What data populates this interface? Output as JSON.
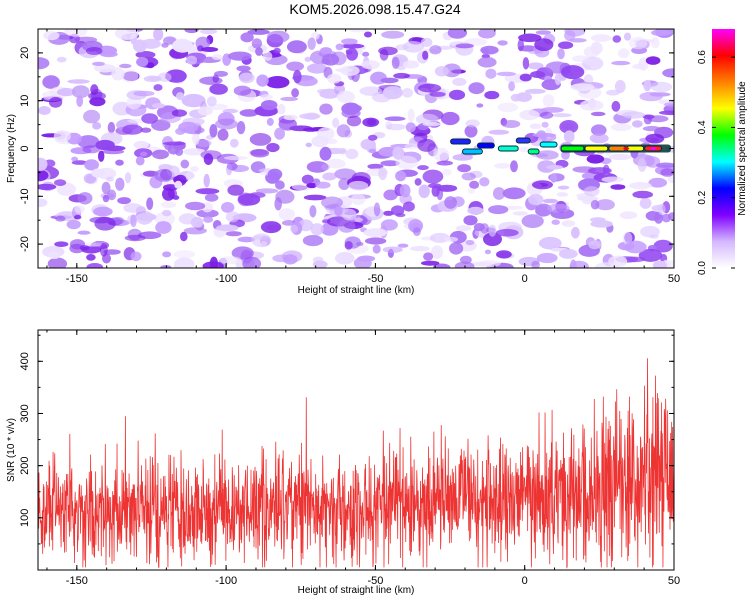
{
  "title": "KOM5.2026.098.15.47.G24",
  "chart_data": [
    {
      "type": "heatmap",
      "title": "KOM5.2026.098.15.47.G24",
      "xlabel": "Height of straight line (km)",
      "ylabel": "Frequency (Hz)",
      "xlim": [
        -163,
        50
      ],
      "ylim": [
        -25,
        25
      ],
      "x_ticks": [
        -150,
        -100,
        -50,
        0,
        50
      ],
      "y_ticks": [
        -20,
        -10,
        0,
        10,
        20
      ],
      "colorbar": {
        "label": "Normalized spectral amplitude",
        "range": [
          0.0,
          0.68
        ],
        "ticks": [
          0.0,
          0.2,
          0.4,
          0.6
        ],
        "colormap": [
          "#ffffff",
          "#d4b8ff",
          "#8000ff",
          "#0000ff",
          "#00ffff",
          "#00ff00",
          "#ffff00",
          "#ff8000",
          "#ff0000",
          "#ff00ff"
        ]
      },
      "features": [
        {
          "name": "background noise",
          "x_range": [
            -163,
            50
          ],
          "y_range": [
            -25,
            25
          ],
          "amplitude": 0.06
        },
        {
          "name": "signal line",
          "x_range": [
            -25,
            50
          ],
          "frequency_hz": 0,
          "amplitude_start": 0.2,
          "amplitude_end": 0.65
        }
      ]
    },
    {
      "type": "line",
      "xlabel": "Height of straight line (km)",
      "ylabel": "SNR (10 * v/v)",
      "xlim": [
        -163,
        50
      ],
      "ylim": [
        0,
        460
      ],
      "x_ticks": [
        -150,
        -100,
        -50,
        0,
        50
      ],
      "y_ticks": [
        100,
        200,
        300,
        400
      ],
      "series": [
        {
          "name": "SNR",
          "color": "#ee3333",
          "trend_x": [
            -163,
            -100,
            -50,
            0,
            25,
            50
          ],
          "trend_mean": [
            110,
            115,
            120,
            135,
            160,
            200
          ]
        }
      ]
    }
  ]
}
